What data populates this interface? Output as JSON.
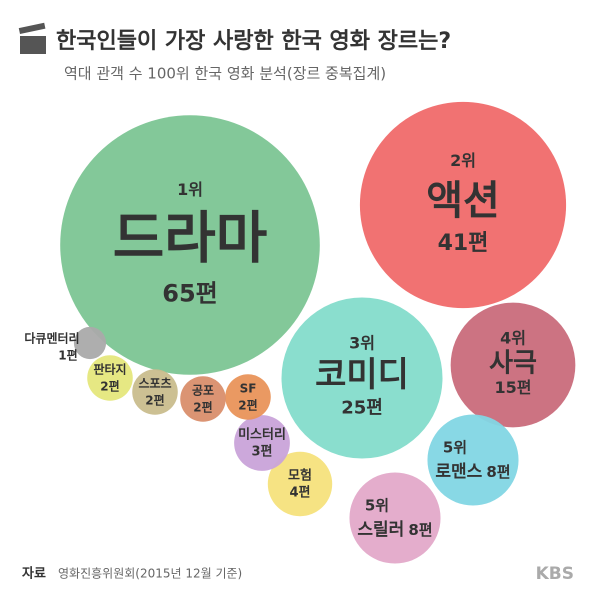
{
  "chart_data": {
    "type": "bubble",
    "title": "한국인들이 가장 사랑한 한국 영화 장르는?",
    "subtitle": "역대 관객 수 100위 한국 영화 분석(장르 중복집계)",
    "categories": [
      "드라마",
      "액션",
      "코미디",
      "사극",
      "로맨스",
      "스릴러",
      "모험",
      "미스터리",
      "SF",
      "공포",
      "스포츠",
      "판타지",
      "다큐멘터리"
    ],
    "values": [
      65,
      41,
      25,
      15,
      8,
      8,
      4,
      3,
      2,
      2,
      2,
      2,
      1
    ],
    "value_labels": [
      "65편",
      "41편",
      "25편",
      "15편",
      "8편",
      "8편",
      "4편",
      "3편",
      "2편",
      "2편",
      "2편",
      "2편",
      "1편"
    ],
    "rank_labels": [
      "1위",
      "2위",
      "3위",
      "4위",
      "5위",
      "5위",
      null,
      null,
      null,
      null,
      null,
      null,
      null
    ],
    "colors": [
      "#7cc594",
      "#f06a6a",
      "#84dccb",
      "#c96b7b",
      "#82d6e4",
      "#e3a9c9",
      "#f6e27c",
      "#c9a3d9",
      "#e9935a",
      "#d98e6b",
      "#c9bd8d",
      "#e5e77c",
      "#aaaaaa"
    ],
    "source_label": "자료",
    "source": "영화진흥위원회(2015년 12월 기준)",
    "brand": "KBS"
  }
}
